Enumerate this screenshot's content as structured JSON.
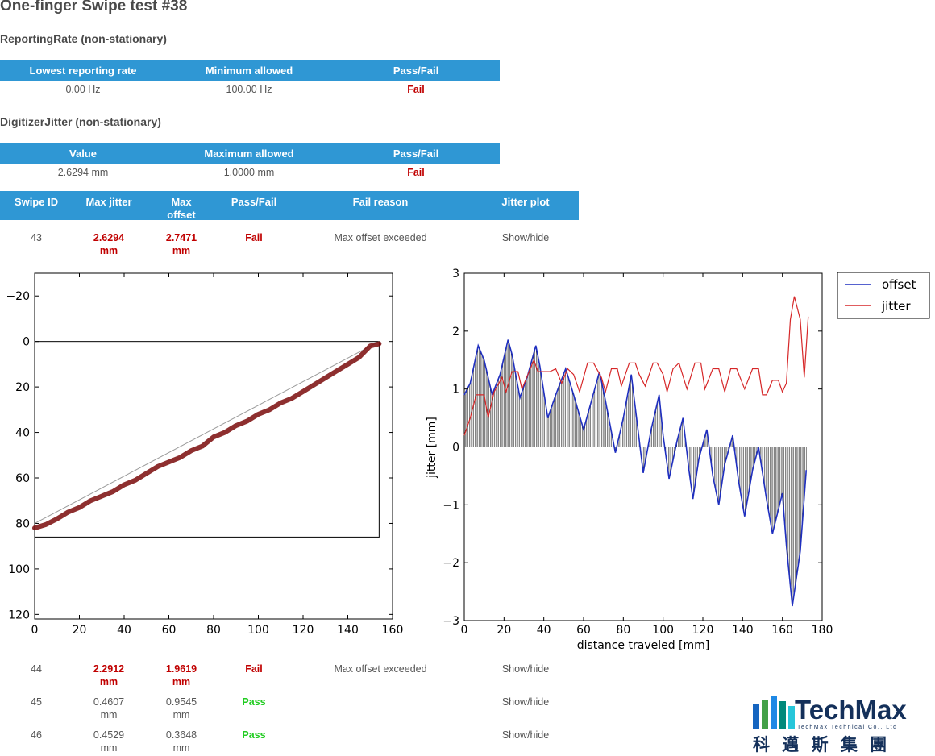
{
  "page": {
    "title": "One-finger Swipe test #38"
  },
  "reporting_rate": {
    "title": "ReportingRate (non-stationary)",
    "headers": [
      "Lowest reporting rate",
      "Minimum allowed",
      "Pass/Fail"
    ],
    "row": [
      "0.00 Hz",
      "100.00 Hz",
      "Fail"
    ]
  },
  "digitizer_jitter": {
    "title": "DigitizerJitter (non-stationary)",
    "headers": [
      "Value",
      "Maximum allowed",
      "Pass/Fail"
    ],
    "row": [
      "2.6294 mm",
      "1.0000 mm",
      "Fail"
    ]
  },
  "swipes": {
    "headers": [
      "Swipe ID",
      "Max jitter",
      "Max offset",
      "Pass/Fail",
      "Fail reason",
      "Jitter plot"
    ],
    "rows": [
      {
        "id": "43",
        "jitter": "2.6294",
        "jitter_unit": "mm",
        "offset": "2.7471",
        "offset_unit": "mm",
        "result": "Fail",
        "reason": "Max offset exceeded",
        "plot": "Show/hide"
      },
      {
        "id": "44",
        "jitter": "2.2912",
        "jitter_unit": "mm",
        "offset": "1.9619",
        "offset_unit": "mm",
        "result": "Fail",
        "reason": "Max offset exceeded",
        "plot": "Show/hide"
      },
      {
        "id": "45",
        "jitter": "0.4607",
        "jitter_unit": "mm",
        "offset": "0.9545",
        "offset_unit": "mm",
        "result": "Pass",
        "reason": "",
        "plot": "Show/hide"
      },
      {
        "id": "46",
        "jitter": "0.4529",
        "jitter_unit": "mm",
        "offset": "0.3648",
        "offset_unit": "mm",
        "result": "Pass",
        "reason": "",
        "plot": "Show/hide"
      }
    ]
  },
  "colors": {
    "header_bg": "#2f97d4",
    "fail": "#c00000",
    "pass": "#22cc22",
    "offset": "#1f2fbf",
    "jitter": "#d62728",
    "trace": "#7a0a0a"
  },
  "logo": {
    "name": "TechMax",
    "subtitle": "TechMax Technical Co., Ltd",
    "chinese": "科 邁 斯 集 團"
  },
  "chart_data": [
    {
      "type": "scatter",
      "title": "",
      "x": {
        "min": 0,
        "max": 160,
        "ticks": [
          "0",
          "20",
          "40",
          "60",
          "80",
          "100",
          "120",
          "140",
          "160"
        ]
      },
      "y": {
        "min": -30,
        "max": 122,
        "inverted": true,
        "ticks": [
          "−20",
          "0",
          "20",
          "40",
          "60",
          "80",
          "100",
          "120"
        ]
      },
      "rect": {
        "x0": 0,
        "x1": 154,
        "y0": 0,
        "y1": 86
      },
      "trace_points": [
        [
          0,
          82
        ],
        [
          5,
          80.5
        ],
        [
          10,
          78
        ],
        [
          15,
          75
        ],
        [
          20,
          73
        ],
        [
          25,
          70
        ],
        [
          30,
          68
        ],
        [
          35,
          66
        ],
        [
          40,
          63
        ],
        [
          45,
          61
        ],
        [
          50,
          58
        ],
        [
          55,
          55
        ],
        [
          60,
          53
        ],
        [
          65,
          51
        ],
        [
          70,
          48
        ],
        [
          75,
          46
        ],
        [
          80,
          42
        ],
        [
          85,
          40
        ],
        [
          90,
          37
        ],
        [
          95,
          35
        ],
        [
          100,
          32
        ],
        [
          105,
          30
        ],
        [
          110,
          27
        ],
        [
          115,
          25
        ],
        [
          120,
          22
        ],
        [
          125,
          19
        ],
        [
          130,
          16
        ],
        [
          135,
          13
        ],
        [
          140,
          10
        ],
        [
          145,
          7
        ],
        [
          150,
          2
        ],
        [
          154,
          1
        ]
      ]
    },
    {
      "type": "line",
      "xlabel": "distance traveled [mm]",
      "ylabel": "jitter [mm]",
      "xlim": [
        0,
        180
      ],
      "ylim": [
        -3,
        3
      ],
      "x_ticks": [
        "0",
        "20",
        "40",
        "60",
        "80",
        "100",
        "120",
        "140",
        "160",
        "180"
      ],
      "y_ticks": [
        "3",
        "2",
        "1",
        "0",
        "−1",
        "−2",
        "−3"
      ],
      "legend": {
        "position": "outside-right",
        "entries": [
          "offset",
          "jitter"
        ]
      },
      "series": [
        {
          "name": "offset",
          "points": [
            [
              0,
              0.9
            ],
            [
              3,
              1.1
            ],
            [
              7,
              1.75
            ],
            [
              10,
              1.5
            ],
            [
              14,
              0.9
            ],
            [
              18,
              1.25
            ],
            [
              22,
              1.85
            ],
            [
              24,
              1.6
            ],
            [
              28,
              0.85
            ],
            [
              32,
              1.25
            ],
            [
              36,
              1.75
            ],
            [
              38,
              1.4
            ],
            [
              42,
              0.5
            ],
            [
              46,
              0.9
            ],
            [
              51,
              1.35
            ],
            [
              55,
              0.9
            ],
            [
              60,
              0.3
            ],
            [
              64,
              0.8
            ],
            [
              68,
              1.3
            ],
            [
              71,
              0.8
            ],
            [
              76,
              -0.1
            ],
            [
              80,
              0.5
            ],
            [
              84,
              1.25
            ],
            [
              87,
              0.4
            ],
            [
              90,
              -0.45
            ],
            [
              94,
              0.3
            ],
            [
              98,
              0.9
            ],
            [
              100,
              0.2
            ],
            [
              103,
              -0.55
            ],
            [
              107,
              0.1
            ],
            [
              110,
              0.5
            ],
            [
              113,
              -0.4
            ],
            [
              115,
              -0.9
            ],
            [
              118,
              -0.2
            ],
            [
              122,
              0.3
            ],
            [
              125,
              -0.5
            ],
            [
              128,
              -1.0
            ],
            [
              131,
              -0.3
            ],
            [
              135,
              0.2
            ],
            [
              138,
              -0.6
            ],
            [
              141,
              -1.2
            ],
            [
              145,
              -0.4
            ],
            [
              148,
              0.0
            ],
            [
              152,
              -0.9
            ],
            [
              155,
              -1.5
            ],
            [
              160,
              -0.8
            ],
            [
              162,
              -1.7
            ],
            [
              165,
              -2.75
            ],
            [
              169,
              -1.8
            ],
            [
              172,
              -0.4
            ]
          ]
        },
        {
          "name": "jitter",
          "points": [
            [
              0,
              0.2
            ],
            [
              3,
              0.5
            ],
            [
              6,
              0.9
            ],
            [
              10,
              0.9
            ],
            [
              12,
              0.5
            ],
            [
              15,
              0.95
            ],
            [
              19,
              1.2
            ],
            [
              21,
              0.95
            ],
            [
              24,
              1.3
            ],
            [
              27,
              1.3
            ],
            [
              29,
              1.0
            ],
            [
              32,
              1.25
            ],
            [
              35,
              1.5
            ],
            [
              37,
              1.3
            ],
            [
              40,
              1.3
            ],
            [
              43,
              1.3
            ],
            [
              46,
              1.35
            ],
            [
              49,
              1.1
            ],
            [
              52,
              1.35
            ],
            [
              55,
              1.25
            ],
            [
              58,
              0.95
            ],
            [
              62,
              1.45
            ],
            [
              65,
              1.45
            ],
            [
              69,
              1.2
            ],
            [
              71,
              0.95
            ],
            [
              74,
              1.35
            ],
            [
              77,
              1.35
            ],
            [
              79,
              1.05
            ],
            [
              83,
              1.45
            ],
            [
              86,
              1.45
            ],
            [
              88,
              1.25
            ],
            [
              91,
              1.05
            ],
            [
              95,
              1.45
            ],
            [
              97,
              1.45
            ],
            [
              100,
              1.25
            ],
            [
              102,
              0.95
            ],
            [
              105,
              1.35
            ],
            [
              108,
              1.45
            ],
            [
              112,
              1.0
            ],
            [
              116,
              1.45
            ],
            [
              119,
              1.45
            ],
            [
              121,
              1.0
            ],
            [
              125,
              1.35
            ],
            [
              128,
              1.35
            ],
            [
              131,
              0.95
            ],
            [
              134,
              1.35
            ],
            [
              137,
              1.35
            ],
            [
              141,
              1.0
            ],
            [
              145,
              1.35
            ],
            [
              148,
              1.35
            ],
            [
              150,
              0.9
            ],
            [
              152,
              0.9
            ],
            [
              155,
              1.15
            ],
            [
              158,
              1.15
            ],
            [
              160,
              0.95
            ],
            [
              162,
              1.1
            ],
            [
              164,
              2.2
            ],
            [
              166,
              2.6
            ],
            [
              169,
              2.2
            ],
            [
              171,
              1.2
            ],
            [
              173,
              2.25
            ]
          ]
        }
      ]
    }
  ]
}
